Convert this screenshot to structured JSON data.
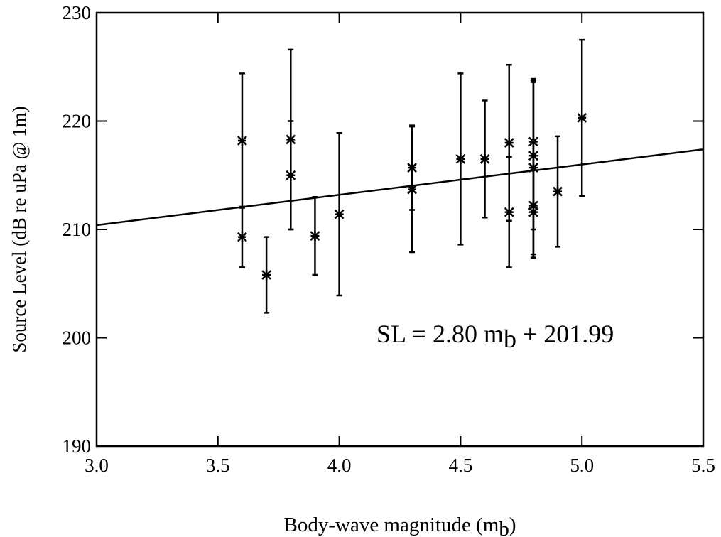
{
  "chart_data": {
    "type": "scatter",
    "x_label": {
      "text": "Body-wave magnitude (m",
      "subscript": "b",
      "suffix": ")"
    },
    "y_label": "Source Level (dB re uPa @ 1m)",
    "annotation": {
      "text": "SL = 2.80 m",
      "subscript": "b",
      "suffix": " + 201.99"
    },
    "fit": {
      "slope": 2.8,
      "intercept": 201.99
    },
    "x": [
      3.6,
      3.6,
      3.7,
      3.8,
      3.8,
      3.9,
      4.0,
      4.3,
      4.3,
      4.5,
      4.6,
      4.7,
      4.7,
      4.8,
      4.8,
      4.8,
      4.8,
      4.8,
      4.9,
      5.0
    ],
    "values": [
      218.2,
      209.3,
      205.8,
      218.3,
      215.0,
      209.4,
      211.4,
      215.7,
      213.7,
      216.5,
      216.5,
      218.0,
      211.6,
      218.1,
      216.8,
      215.7,
      212.2,
      211.6,
      213.5,
      220.3
    ],
    "errors": [
      6.2,
      2.8,
      3.5,
      8.3,
      5.0,
      3.6,
      7.5,
      3.9,
      5.8,
      7.9,
      5.4,
      7.2,
      5.1,
      5.8,
      6.8,
      8.0,
      4.8,
      4.2,
      5.1,
      7.2
    ],
    "color": "#000000",
    "xlim": [
      3.0,
      5.5
    ],
    "xticks": [
      {
        "value": 3,
        "label": "3.0"
      },
      {
        "value": 3.5,
        "label": "3.5"
      },
      {
        "value": 4,
        "label": "4.0"
      },
      {
        "value": 4.5,
        "label": "4.5"
      },
      {
        "value": 5,
        "label": "5.0"
      },
      {
        "value": 5.5,
        "label": "5.5"
      }
    ],
    "ylim": [
      190,
      230
    ],
    "yticks": [
      190,
      200,
      210,
      220,
      230
    ],
    "grid": false
  }
}
